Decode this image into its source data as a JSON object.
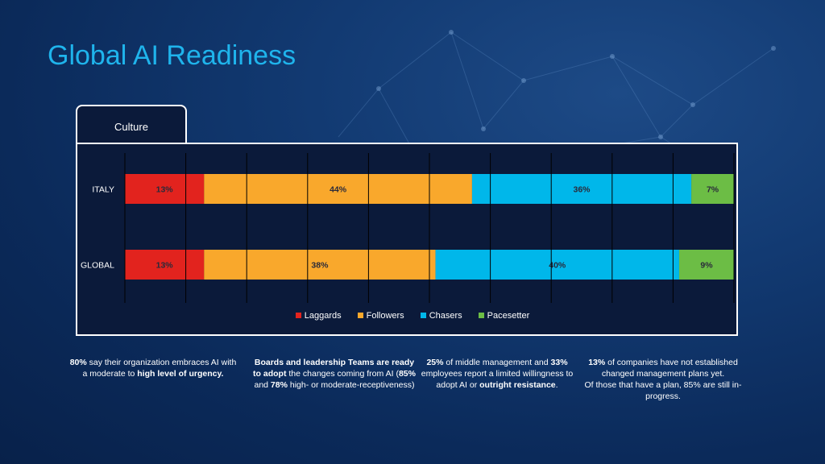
{
  "slide": {
    "title": "Global AI Readiness",
    "tab": "Culture"
  },
  "chart_data": {
    "type": "bar",
    "orientation": "horizontal",
    "stacked": true,
    "categories": [
      "ITALY",
      "GLOBAL"
    ],
    "series": [
      {
        "name": "Laggards",
        "color": "#e2231e",
        "values": [
          13,
          13
        ],
        "labels": [
          "13%",
          "13%"
        ]
      },
      {
        "name": "Followers",
        "color": "#f9a82c",
        "values": [
          44,
          38
        ],
        "labels": [
          "44%",
          "38%"
        ]
      },
      {
        "name": "Chasers",
        "color": "#00b7ea",
        "values": [
          36,
          40
        ],
        "labels": [
          "36%",
          "40%"
        ]
      },
      {
        "name": "Pacesetter",
        "color": "#6cbd45",
        "values": [
          7,
          9
        ],
        "labels": [
          "7%",
          "9%"
        ]
      }
    ],
    "xlim": [
      0,
      100
    ],
    "grid": true,
    "legend": "bottom"
  },
  "notes": [
    {
      "parts": [
        [
          "b",
          "80%"
        ],
        [
          "t",
          " say their organization embraces AI with a moderate to "
        ],
        [
          "b",
          "high level of urgency."
        ]
      ]
    },
    {
      "parts": [
        [
          "b",
          "Boards and leadership Teams are ready to adopt"
        ],
        [
          "t",
          " the changes coming from AI ("
        ],
        [
          "b",
          "85%"
        ],
        [
          "t",
          " and "
        ],
        [
          "b",
          "78%"
        ],
        [
          "t",
          " high- or moderate-receptiveness)"
        ]
      ]
    },
    {
      "parts": [
        [
          "b",
          "25%"
        ],
        [
          "t",
          " of middle management and "
        ],
        [
          "b",
          "33%"
        ],
        [
          "t",
          " employees report a limited willingness to adopt AI or "
        ],
        [
          "b",
          "outright resistance"
        ],
        [
          "t",
          "."
        ]
      ]
    },
    {
      "parts": [
        [
          "b",
          "13%"
        ],
        [
          "t",
          " of companies have not established changed management plans yet."
        ],
        [
          "br",
          ""
        ],
        [
          "t",
          "Of those that have a plan, 85% are still in-progress."
        ]
      ]
    }
  ]
}
